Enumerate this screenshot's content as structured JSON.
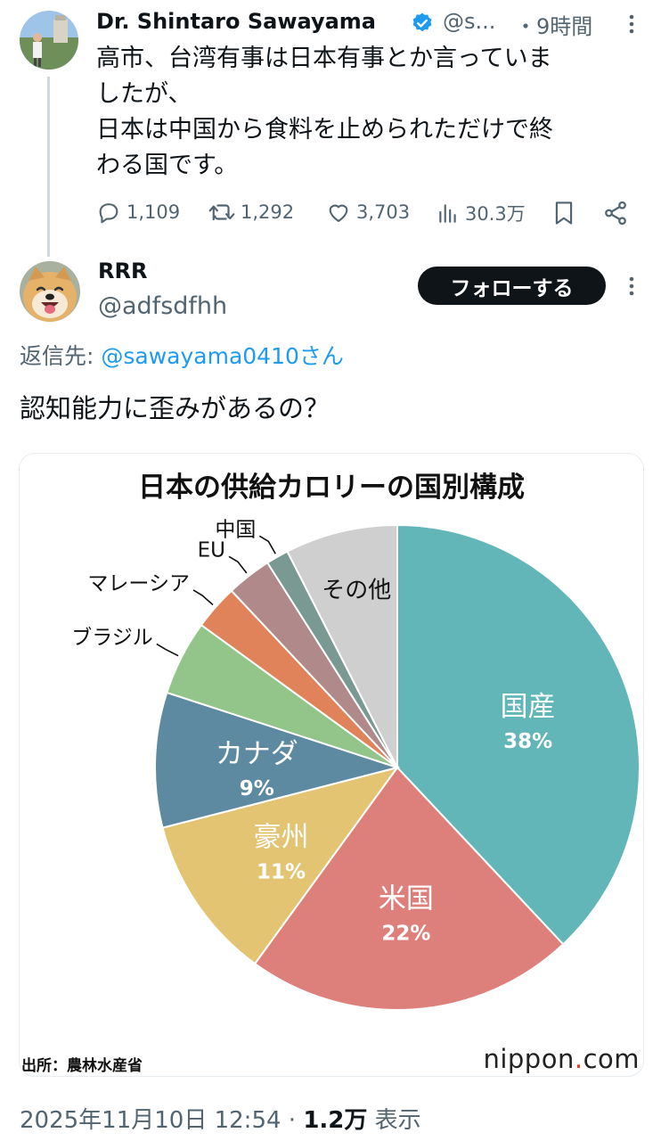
{
  "parent_tweet": {
    "author_name": "Dr. Shintaro Sawayama",
    "handle_truncated": "@s...",
    "time": "・9時間",
    "text_lines": [
      "高市、台湾有事は日本有事とか言っていま",
      "したが、",
      "日本は中国から食料を止められただけで終",
      "わる国です。"
    ],
    "replies": "1,109",
    "retweets": "1,292",
    "likes": "3,703",
    "views": "30.3万"
  },
  "reply_tweet": {
    "author_name": "RRR",
    "handle": "@adfsdfhh",
    "follow_label": "フォローする",
    "reply_to_prefix": "返信先: ",
    "reply_to_mention": "@sawayama0410さん",
    "text": "認知能力に歪みがあるの？",
    "timestamp": "2025年11月10日 12:54",
    "views_count": "1.2万",
    "views_label": "表示"
  },
  "chart_card": {
    "source": "出所：農林水産省",
    "brand_main": "nippon",
    "brand_dot": ".",
    "brand_suffix": "com"
  },
  "chart_data": {
    "type": "pie",
    "title": "日本の供給カロリーの国別構成",
    "slices": [
      {
        "label": "国産",
        "value": 38,
        "value_label": "38%",
        "color": "#62b6b7",
        "label_inside": true
      },
      {
        "label": "米国",
        "value": 22,
        "value_label": "22%",
        "color": "#dd807c",
        "label_inside": true
      },
      {
        "label": "豪州",
        "value": 11,
        "value_label": "11%",
        "color": "#e3c472",
        "label_inside": true
      },
      {
        "label": "カナダ",
        "value": 9,
        "value_label": "9%",
        "color": "#5e8aa1",
        "label_inside": true
      },
      {
        "label": "ブラジル",
        "value": 5,
        "value_label": "",
        "color": "#93c58a",
        "label_inside": false
      },
      {
        "label": "マレーシア",
        "value": 3,
        "value_label": "",
        "color": "#e0825a",
        "label_inside": false
      },
      {
        "label": "EU",
        "value": 3,
        "value_label": "",
        "color": "#b08a8a",
        "label_inside": false
      },
      {
        "label": "中国",
        "value": 1.5,
        "value_label": "",
        "color": "#7a9993",
        "label_inside": false
      },
      {
        "label": "その他",
        "value": 7.5,
        "value_label": "",
        "color": "#cfcfcf",
        "label_inside": true
      }
    ],
    "start_angle": "12 o'clock",
    "direction": "clockwise"
  }
}
